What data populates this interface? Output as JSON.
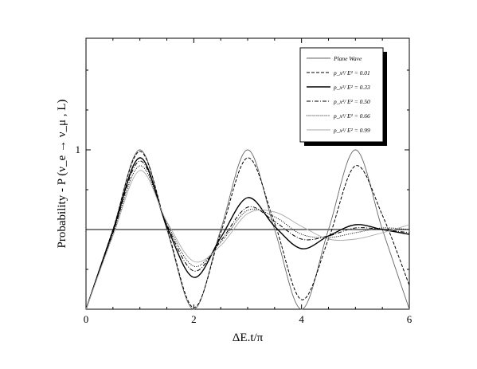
{
  "chart_data": {
    "type": "line",
    "xlabel": "ΔE.t/π",
    "ylabel": "Probability - P (ν_e → ν_μ , L)",
    "xlim": [
      0,
      6
    ],
    "ylim": [
      0,
      1.7
    ],
    "x_ticks": [
      0,
      2,
      4,
      6
    ],
    "x_tick_labels": [
      "0",
      "2",
      "4",
      "6"
    ],
    "y_ticks": [
      1
    ],
    "y_tick_labels": [
      "1"
    ],
    "grid": false,
    "legend_position": "top-right",
    "legend_entries": [
      "Plane Wave",
      "p_x²/ E² = 0.01",
      "p_x²/ E² = 0.33",
      "p_x²/ E² = 0.50",
      "p_x²/ E² = 0.66",
      "p_x²/ E² = 0.99"
    ],
    "reference_line": {
      "y": 0.5
    },
    "series": [
      {
        "name": "Plane Wave",
        "style": "solid-thin",
        "color": "#666666",
        "x": [
          0,
          0.5,
          1,
          1.5,
          2,
          2.5,
          3,
          3.5,
          4,
          4.5,
          5,
          5.5,
          6
        ],
        "y": [
          0,
          0.5,
          1,
          0.5,
          0,
          0.5,
          1,
          0.5,
          0,
          0.5,
          1,
          0.5,
          0
        ]
      },
      {
        "name": "p_x²/ E² = 0.01",
        "style": "dashed",
        "color": "#000000",
        "x": [
          0,
          0.5,
          1,
          1.5,
          2,
          2.5,
          3,
          3.5,
          4,
          4.5,
          5,
          5.5,
          6
        ],
        "y": [
          0,
          0.5,
          0.99,
          0.51,
          0.01,
          0.48,
          0.95,
          0.54,
          0.06,
          0.44,
          0.9,
          0.59,
          0.15
        ]
      },
      {
        "name": "p_x²/ E² = 0.33",
        "style": "solid-thick",
        "color": "#000000",
        "x": [
          0,
          0.5,
          1,
          1.5,
          2,
          2.5,
          3,
          3.5,
          4,
          4.5,
          5,
          5.5,
          6
        ],
        "y": [
          0,
          0.49,
          0.95,
          0.52,
          0.2,
          0.45,
          0.7,
          0.52,
          0.38,
          0.46,
          0.53,
          0.5,
          0.47
        ]
      },
      {
        "name": "p_x²/ E² = 0.50",
        "style": "dashdot",
        "color": "#000000",
        "x": [
          0,
          0.5,
          1,
          1.5,
          2,
          2.5,
          3,
          3.5,
          4,
          4.5,
          5,
          5.5,
          6
        ],
        "y": [
          0,
          0.48,
          0.93,
          0.53,
          0.24,
          0.43,
          0.64,
          0.55,
          0.44,
          0.46,
          0.51,
          0.5,
          0.48
        ]
      },
      {
        "name": "p_x²/ E² = 0.66",
        "style": "dotted",
        "color": "#000000",
        "x": [
          0,
          0.5,
          1,
          1.5,
          2,
          2.5,
          3,
          3.5,
          4,
          4.5,
          5,
          5.5,
          6
        ],
        "y": [
          0,
          0.47,
          0.9,
          0.54,
          0.27,
          0.42,
          0.62,
          0.58,
          0.47,
          0.45,
          0.48,
          0.51,
          0.5
        ]
      },
      {
        "name": "p_x²/ E² = 0.99",
        "style": "solid-thin",
        "color": "#aaaaaa",
        "x": [
          0,
          0.5,
          1,
          1.5,
          2,
          2.5,
          3,
          3.5,
          4,
          4.5,
          5,
          5.5,
          6
        ],
        "y": [
          0,
          0.46,
          0.87,
          0.55,
          0.3,
          0.4,
          0.6,
          0.61,
          0.52,
          0.44,
          0.44,
          0.48,
          0.53
        ]
      }
    ]
  }
}
